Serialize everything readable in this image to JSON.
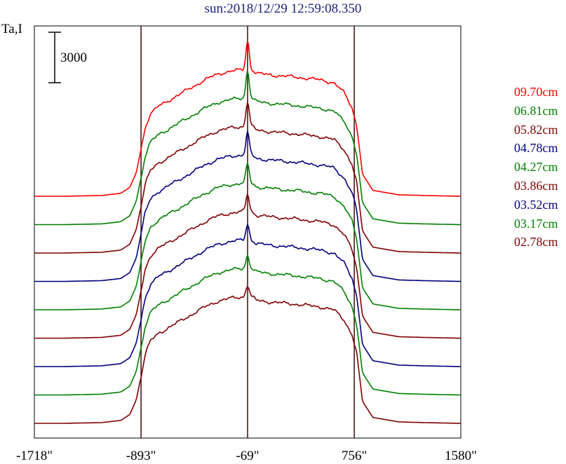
{
  "chart_data": {
    "type": "line",
    "title": "sun:2018/12/29 12:59:08.350",
    "ylabel": "Ta,I",
    "scale_bar_label": "3000",
    "scale_bar_value": 3000,
    "x_ticks": [
      "-1718\"",
      "-893\"",
      "-69\"",
      "756\"",
      "1580\""
    ],
    "xlim": [
      -1718,
      1580
    ],
    "vertical_lines": [
      -893,
      -69,
      756
    ],
    "legend_position": "right",
    "profile_shape": {
      "x": [
        -1718,
        -1500,
        -1200,
        -1050,
        -980,
        -930,
        -893,
        -860,
        -820,
        -760,
        -680,
        -600,
        -500,
        -400,
        -300,
        -200,
        -150,
        -100,
        -69,
        -40,
        -20,
        0,
        100,
        300,
        500,
        600,
        680,
        740,
        775,
        820,
        900,
        1100,
        1300,
        1580
      ],
      "y": [
        0,
        0,
        5,
        20,
        60,
        160,
        320,
        470,
        560,
        610,
        650,
        690,
        740,
        790,
        830,
        850,
        855,
        860,
        880,
        860,
        850,
        835,
        825,
        810,
        790,
        770,
        700,
        600,
        480,
        150,
        40,
        10,
        5,
        0
      ]
    },
    "series": [
      {
        "name": "09.70cm",
        "color": "#ff0000",
        "peak_extra": 180
      },
      {
        "name": "06.81cm",
        "color": "#008000",
        "peak_extra": 170
      },
      {
        "name": "05.82cm",
        "color": "#800000",
        "peak_extra": 150
      },
      {
        "name": "04.78cm",
        "color": "#000080",
        "peak_extra": 130
      },
      {
        "name": "04.27cm",
        "color": "#008000",
        "peak_extra": 110
      },
      {
        "name": "03.86cm",
        "color": "#800000",
        "peak_extra": 100
      },
      {
        "name": "03.52cm",
        "color": "#000080",
        "peak_extra": 90
      },
      {
        "name": "03.17cm",
        "color": "#008000",
        "peak_extra": 70
      },
      {
        "name": "02.78cm",
        "color": "#800000",
        "peak_extra": 60
      }
    ]
  }
}
